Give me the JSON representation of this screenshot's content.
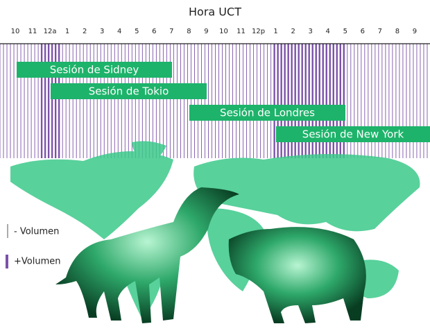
{
  "title": "Hora UCT",
  "hours": [
    "10",
    "11",
    "12a",
    "1",
    "2",
    "3",
    "4",
    "5",
    "6",
    "7",
    "8",
    "9",
    "10",
    "11",
    "12p",
    "1",
    "2",
    "3",
    "4",
    "5",
    "6",
    "7",
    "8",
    "9"
  ],
  "sessions": [
    "Sesión de Sidney",
    "Sesión de Tokio",
    "Sesión de Londres",
    "Sesión de New York"
  ],
  "legend": {
    "low": "- Volumen",
    "high": "+Volumen"
  }
}
